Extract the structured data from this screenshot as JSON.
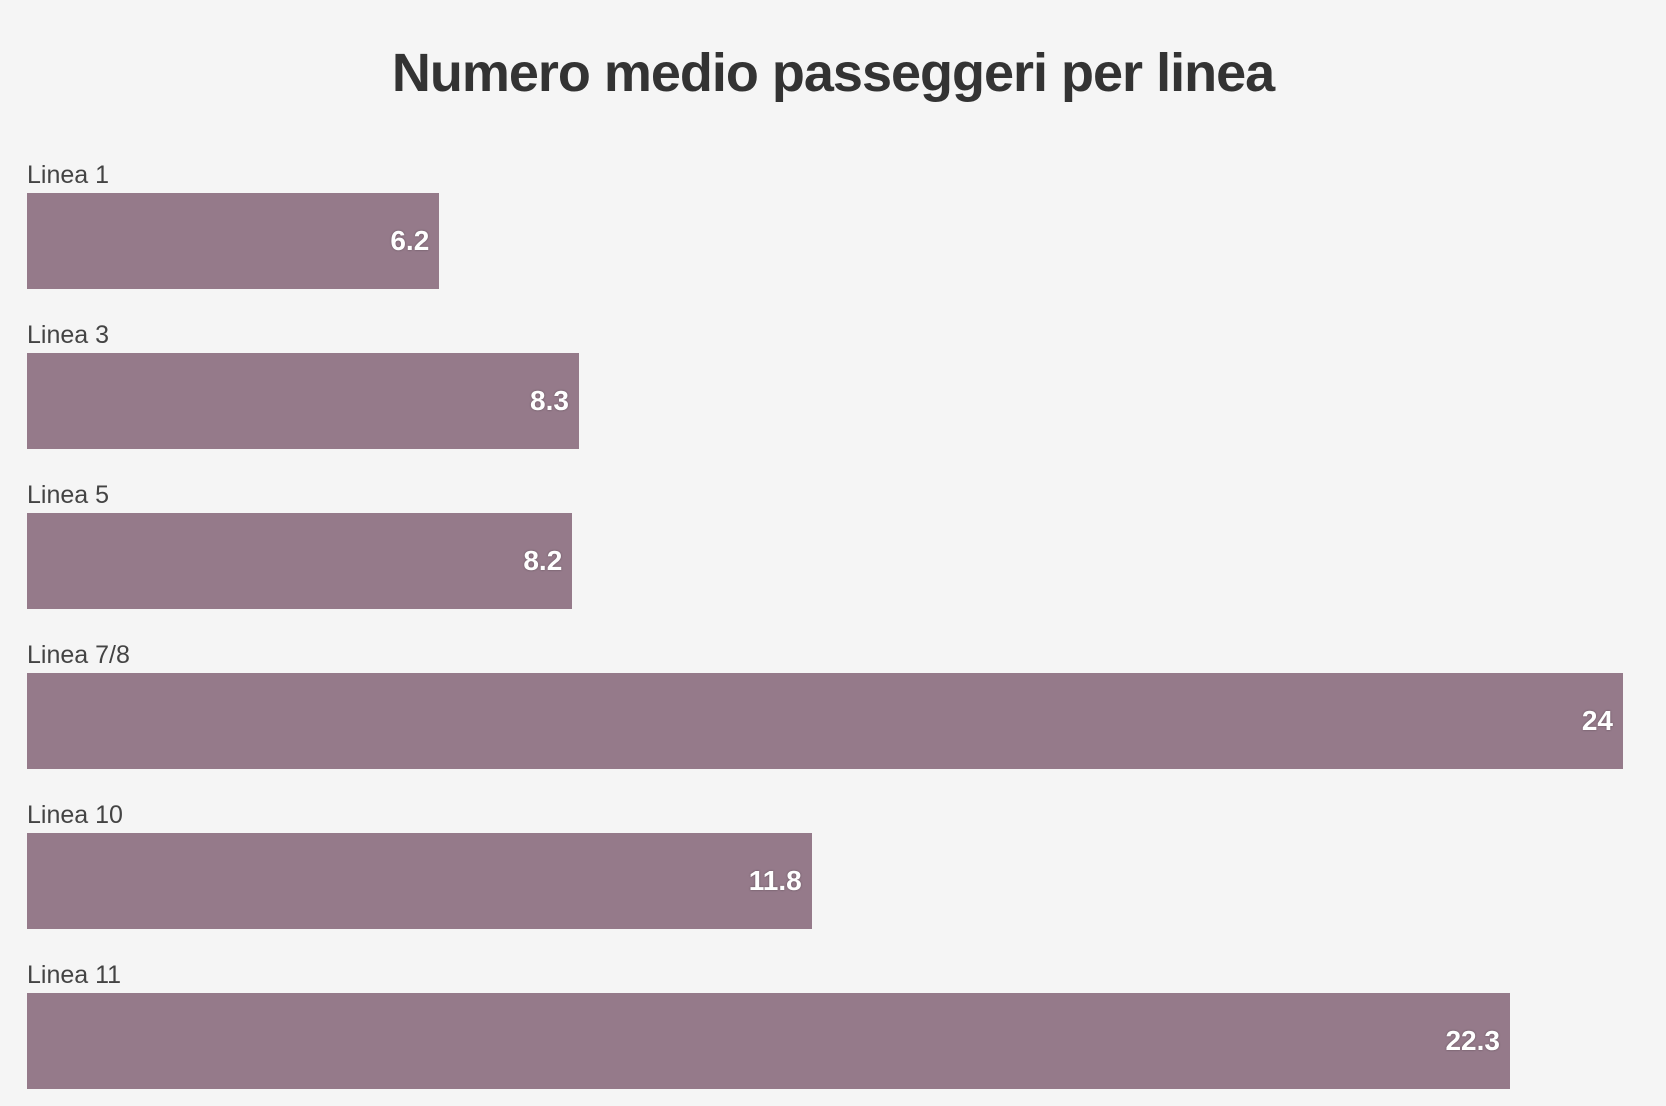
{
  "chart_data": {
    "type": "bar",
    "orientation": "horizontal",
    "title": "Numero medio passeggeri per linea",
    "categories": [
      "Linea 1",
      "Linea 3",
      "Linea 5",
      "Linea 7/8",
      "Linea 10",
      "Linea 11"
    ],
    "values": [
      6.2,
      8.3,
      8.2,
      24,
      11.8,
      22.3
    ],
    "value_labels": [
      "6.2",
      "8.3",
      "8.2",
      "24",
      "11.8",
      "22.3"
    ],
    "xlim": [
      0,
      24
    ],
    "grid": false,
    "legend": "none",
    "colors": {
      "bar": "#957a8a",
      "background": "#f5f5f5",
      "title": "#333333",
      "label": "#444444",
      "value_label": "#ffffff"
    }
  }
}
